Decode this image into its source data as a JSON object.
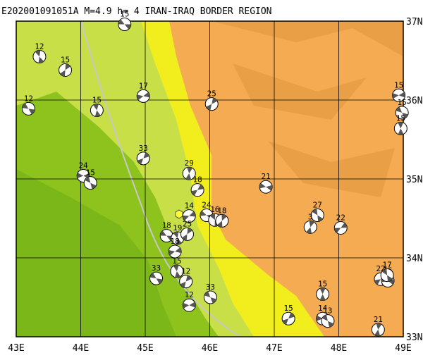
{
  "title": "E202001091051A  M=4.9 h=  4 IRAN-IRAQ BORDER REGION",
  "xlim": [
    43,
    49
  ],
  "ylim": [
    33,
    37
  ],
  "xticks": [
    {
      "value": 43,
      "label": "43E"
    },
    {
      "value": 44,
      "label": "44E"
    },
    {
      "value": 45,
      "label": "45E"
    },
    {
      "value": 46,
      "label": "46E"
    },
    {
      "value": 47,
      "label": "47E"
    },
    {
      "value": 48,
      "label": "48E"
    },
    {
      "value": 49,
      "label": "49E"
    }
  ],
  "yticks": [
    {
      "value": 33,
      "label": "33N"
    },
    {
      "value": 34,
      "label": "34N"
    },
    {
      "value": 35,
      "label": "35N"
    },
    {
      "value": 36,
      "label": "36N"
    },
    {
      "value": 37,
      "label": "37N"
    }
  ],
  "events": [
    {
      "lon": 44.68,
      "lat": 36.96,
      "depth": 15
    },
    {
      "lon": 43.36,
      "lat": 36.55,
      "depth": 12
    },
    {
      "lon": 43.76,
      "lat": 36.38,
      "depth": 15
    },
    {
      "lon": 44.97,
      "lat": 36.05,
      "depth": 17
    },
    {
      "lon": 43.19,
      "lat": 35.89,
      "depth": 12
    },
    {
      "lon": 44.25,
      "lat": 35.87,
      "depth": 15
    },
    {
      "lon": 46.03,
      "lat": 35.95,
      "depth": 25
    },
    {
      "lon": 48.93,
      "lat": 36.06,
      "depth": 15
    },
    {
      "lon": 48.98,
      "lat": 35.84,
      "depth": 15
    },
    {
      "lon": 48.96,
      "lat": 35.64,
      "depth": 15
    },
    {
      "lon": 44.97,
      "lat": 35.26,
      "depth": 33
    },
    {
      "lon": 44.04,
      "lat": 35.04,
      "depth": 24
    },
    {
      "lon": 44.15,
      "lat": 34.95,
      "depth": 15
    },
    {
      "lon": 45.68,
      "lat": 35.07,
      "depth": 29
    },
    {
      "lon": 45.81,
      "lat": 34.86,
      "depth": 18
    },
    {
      "lon": 46.87,
      "lat": 34.9,
      "depth": 21
    },
    {
      "lon": 47.67,
      "lat": 34.54,
      "depth": 27
    },
    {
      "lon": 47.56,
      "lat": 34.39,
      "depth": 3
    },
    {
      "lon": 48.03,
      "lat": 34.38,
      "depth": 22
    },
    {
      "lon": 45.95,
      "lat": 34.54,
      "depth": 24
    },
    {
      "lon": 46.08,
      "lat": 34.48,
      "depth": 16
    },
    {
      "lon": 46.19,
      "lat": 34.47,
      "depth": 18
    },
    {
      "lon": 45.68,
      "lat": 34.53,
      "depth": 14
    },
    {
      "lon": 45.33,
      "lat": 34.28,
      "depth": 18
    },
    {
      "lon": 45.5,
      "lat": 34.25,
      "depth": 19
    },
    {
      "lon": 45.65,
      "lat": 34.3,
      "depth": 25
    },
    {
      "lon": 45.46,
      "lat": 34.08,
      "depth": 18
    },
    {
      "lon": 45.17,
      "lat": 33.74,
      "depth": 33
    },
    {
      "lon": 45.49,
      "lat": 33.83,
      "depth": 15
    },
    {
      "lon": 45.63,
      "lat": 33.7,
      "depth": 12
    },
    {
      "lon": 45.68,
      "lat": 33.4,
      "depth": 12
    },
    {
      "lon": 46.01,
      "lat": 33.5,
      "depth": 33
    },
    {
      "lon": 47.75,
      "lat": 33.54,
      "depth": 15
    },
    {
      "lon": 47.22,
      "lat": 33.23,
      "depth": 15
    },
    {
      "lon": 47.75,
      "lat": 33.23,
      "depth": 14
    },
    {
      "lon": 47.83,
      "lat": 33.2,
      "depth": 13
    },
    {
      "lon": 48.61,
      "lat": 33.09,
      "depth": 21
    },
    {
      "lon": 48.65,
      "lat": 33.73,
      "depth": 22
    },
    {
      "lon": 48.76,
      "lat": 33.71,
      "depth": 16
    },
    {
      "lon": 48.75,
      "lat": 33.78,
      "depth": 17
    }
  ]
}
